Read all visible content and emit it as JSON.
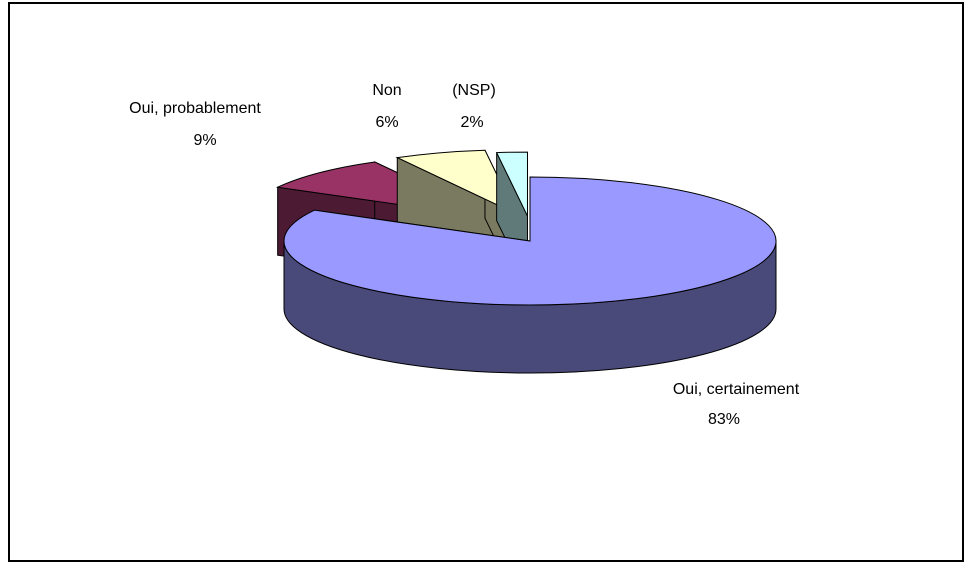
{
  "chart_data": {
    "type": "pie",
    "style": "3d-exploded",
    "title": "",
    "slices": [
      {
        "label": "Oui, certainement",
        "value": 83,
        "value_label": "83%",
        "color": "#9999ff",
        "side_color": "#4a4a7a"
      },
      {
        "label": "Oui, probablement",
        "value": 9,
        "value_label": "9%",
        "color": "#993366",
        "side_color": "#4d1a33"
      },
      {
        "label": "Non",
        "value": 6,
        "value_label": "6%",
        "color": "#ffffcc",
        "side_color": "#7a7a60"
      },
      {
        "label": "(NSP)",
        "value": 2,
        "value_label": "2%",
        "color": "#ccffff",
        "side_color": "#607a7a"
      }
    ]
  }
}
